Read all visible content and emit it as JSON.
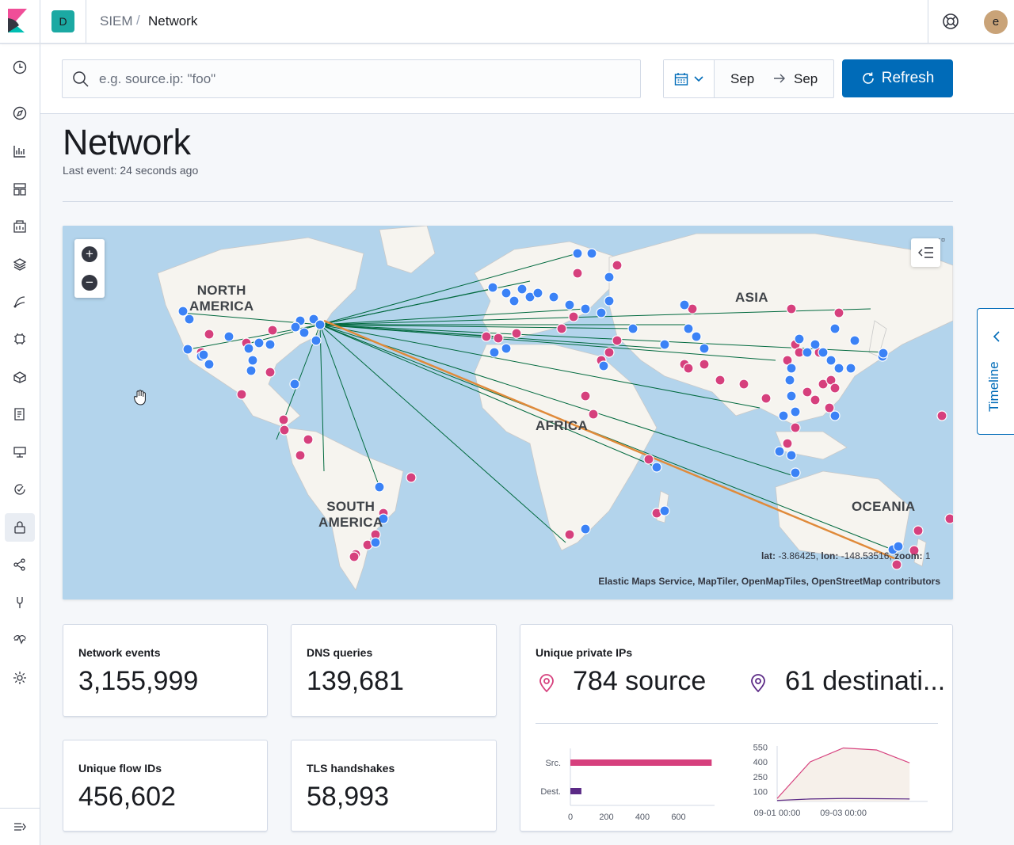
{
  "header": {
    "space_initial": "D",
    "breadcrumb_app": "SIEM",
    "breadcrumb_separator": "/",
    "breadcrumb_page": "Network",
    "user_initial": "e"
  },
  "search": {
    "placeholder": "e.g. source.ip: \"foo\""
  },
  "date_picker": {
    "start": "Sep",
    "end": "Sep"
  },
  "refresh_label": "Refresh",
  "page": {
    "title": "Network",
    "last_event": "Last event: 24 seconds ago"
  },
  "map": {
    "labels": {
      "north_america": "NORTH\nAMERICA",
      "south_america": "SOUTH\nAMERICA",
      "asia": "ASIA",
      "africa": "AFRICA",
      "oceania": "OCEANIA"
    },
    "coords": {
      "lat_label": "lat:",
      "lat": "-3.86425",
      "lon_label": "lon:",
      "lon": "-148.53516",
      "zoom_label": "zoom:",
      "zoom": "1"
    },
    "attribution": "Elastic Maps Service, MapTiler, OpenMapTiles, OpenStreetMap contributors",
    "menu_glyph": "▫▫▫",
    "colors": {
      "ocean": "#b3d4ec",
      "land": "#f5f3ef",
      "source": "#d6407d",
      "destination": "#3b82f6",
      "line": "#00693e"
    }
  },
  "stats": {
    "network_events": {
      "title": "Network events",
      "value": "3,155,999"
    },
    "dns_queries": {
      "title": "DNS queries",
      "value": "139,681"
    },
    "unique_flow_ids": {
      "title": "Unique flow IDs",
      "value": "456,602"
    },
    "tls_handshakes": {
      "title": "TLS handshakes",
      "value": "58,993"
    },
    "unique_private_ips": {
      "title": "Unique private IPs",
      "source_value": "784 source",
      "destination_value": "61 destinati..."
    }
  },
  "chart_data": [
    {
      "type": "bar",
      "orientation": "horizontal",
      "categories": [
        "Src.",
        "Dest."
      ],
      "values": [
        784,
        61
      ],
      "colors": [
        "#d6407d",
        "#5b2a86"
      ],
      "xticks": [
        "0",
        "200",
        "400",
        "600"
      ],
      "xlim": [
        0,
        800
      ]
    },
    {
      "type": "area",
      "x": [
        "09-01 00:00",
        "09-02 00:00",
        "09-03 00:00",
        "09-03 12:00",
        "09-04 00:00"
      ],
      "series": [
        {
          "values": [
            30,
            400,
            540,
            520,
            390
          ],
          "color": "#d6407d"
        },
        {
          "values": [
            10,
            25,
            30,
            28,
            25
          ],
          "color": "#5b2a86"
        }
      ],
      "yticks": [
        "550",
        "400",
        "250",
        "100"
      ],
      "xticks": [
        "09-01 00:00",
        "09-03 00:00"
      ],
      "ylim": [
        0,
        560
      ]
    }
  ],
  "timeline_label": "Timeline"
}
